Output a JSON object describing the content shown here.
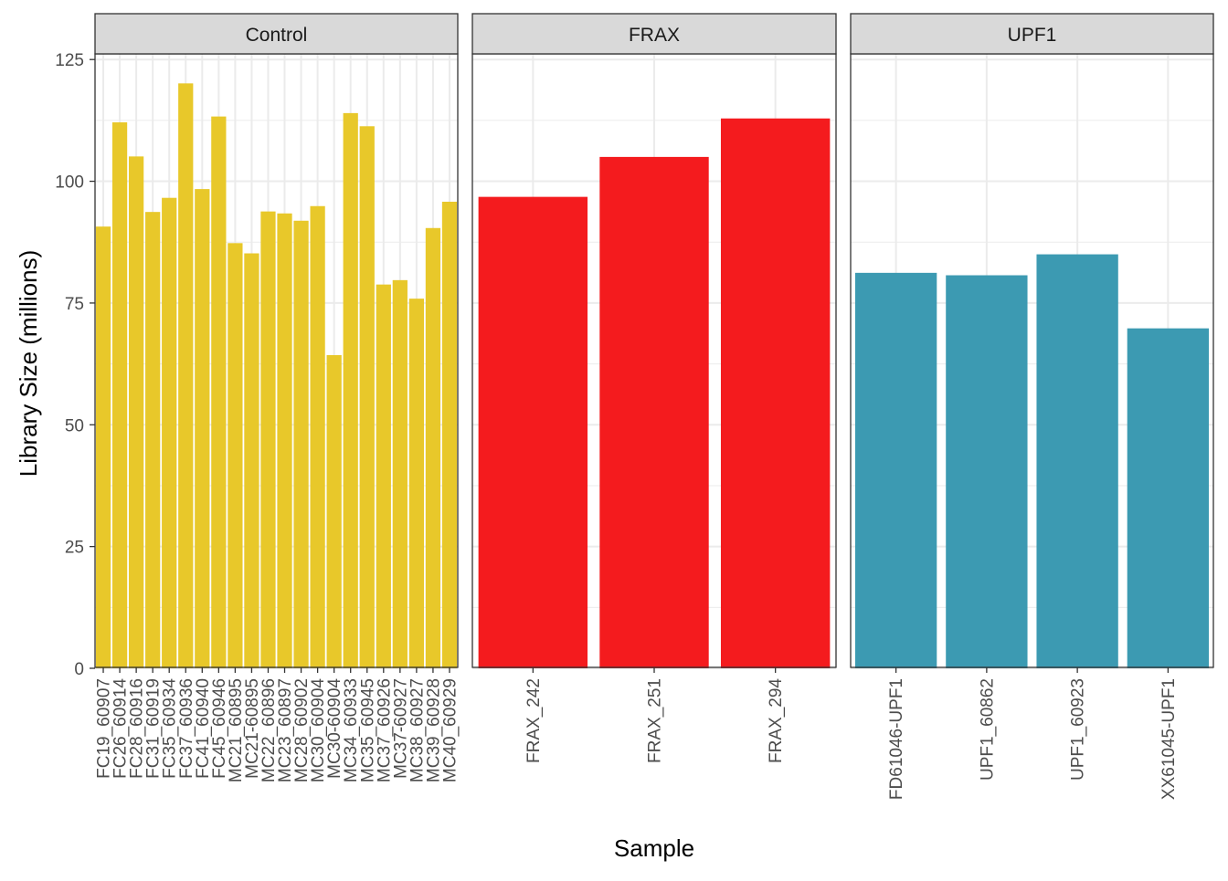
{
  "chart_data": {
    "type": "bar",
    "xlabel": "Sample",
    "ylabel": "Library Size (millions)",
    "ylim": [
      0,
      125
    ],
    "yticks": [
      0,
      25,
      50,
      75,
      100,
      125
    ],
    "grid": true,
    "legend": "none",
    "panels": [
      {
        "name": "Control",
        "color": "#E8C82A",
        "categories": [
          "FC19_60907",
          "FC26_60914",
          "FC28_60916",
          "FC31_60919",
          "FC35_60934",
          "FC37_60936",
          "FC41_60940",
          "FC45_60946",
          "MC21_60895",
          "MC21-60895",
          "MC22_60896",
          "MC23_60897",
          "MC28_60902",
          "MC30_60904",
          "MC30-60904",
          "MC34_60933",
          "MC35_60945",
          "MC37_60926",
          "MC37-60927",
          "MC38_60927",
          "MC39_60928",
          "MC40_60929"
        ],
        "values": [
          90.7,
          112.1,
          105.1,
          93.7,
          96.6,
          120.1,
          98.4,
          113.3,
          87.3,
          85.2,
          93.8,
          93.4,
          91.9,
          94.9,
          64.3,
          114.0,
          111.3,
          78.8,
          79.7,
          75.9,
          90.4,
          95.8
        ]
      },
      {
        "name": "FRAX",
        "color": "#F41B1E",
        "categories": [
          "FRAX_242",
          "FRAX_251",
          "FRAX_294"
        ],
        "values": [
          96.8,
          105.0,
          112.9
        ]
      },
      {
        "name": "UPF1",
        "color": "#3C9AB2",
        "categories": [
          "FD61046-UPF1",
          "UPF1_60862",
          "UPF1_60923",
          "XX61045-UPF1"
        ],
        "values": [
          81.2,
          80.7,
          85.0,
          69.8
        ]
      }
    ]
  }
}
